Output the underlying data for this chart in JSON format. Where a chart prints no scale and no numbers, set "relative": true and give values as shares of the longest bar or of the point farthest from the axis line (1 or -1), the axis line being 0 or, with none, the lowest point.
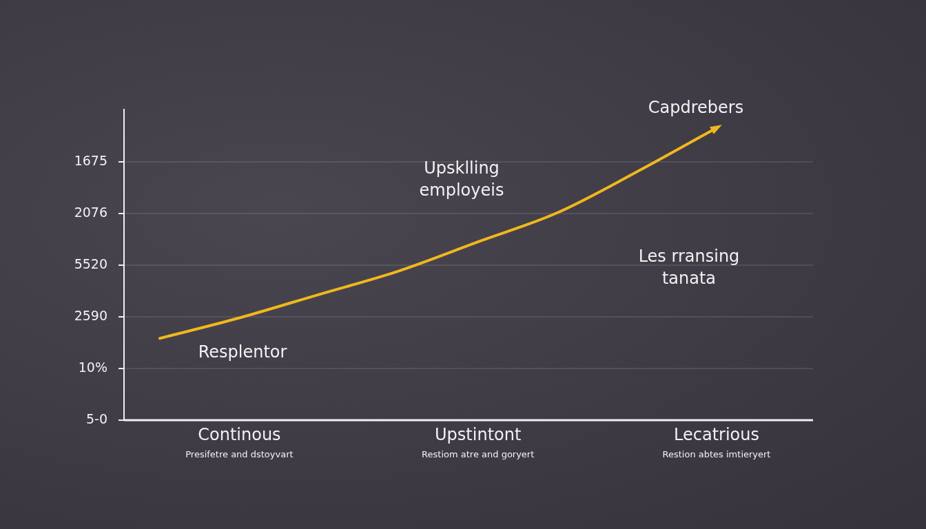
{
  "chart_data": {
    "type": "line",
    "categories": [
      null,
      "Continous",
      null,
      null,
      "Upstintont",
      null,
      null,
      "Lecatrious"
    ],
    "series": [
      {
        "color": "#f0b81c",
        "values": [
          0.28,
          0.35,
          0.43,
          0.51,
          0.61,
          0.71,
          0.85,
          1
        ]
      }
    ],
    "relative": true,
    "grid": "y",
    "marker": "none",
    "line_style": "solid",
    "annotations": [
      "1675",
      "2076",
      "5520",
      "2590",
      "10%",
      "5-0",
      "Capdrebers",
      "Upsklling\nemployeis",
      "Les rransing\ntanata",
      "Resplentor",
      "Presifetre and dstoyvart",
      "Restiom atre and goryert",
      "Restion abtes imtieryert"
    ]
  }
}
